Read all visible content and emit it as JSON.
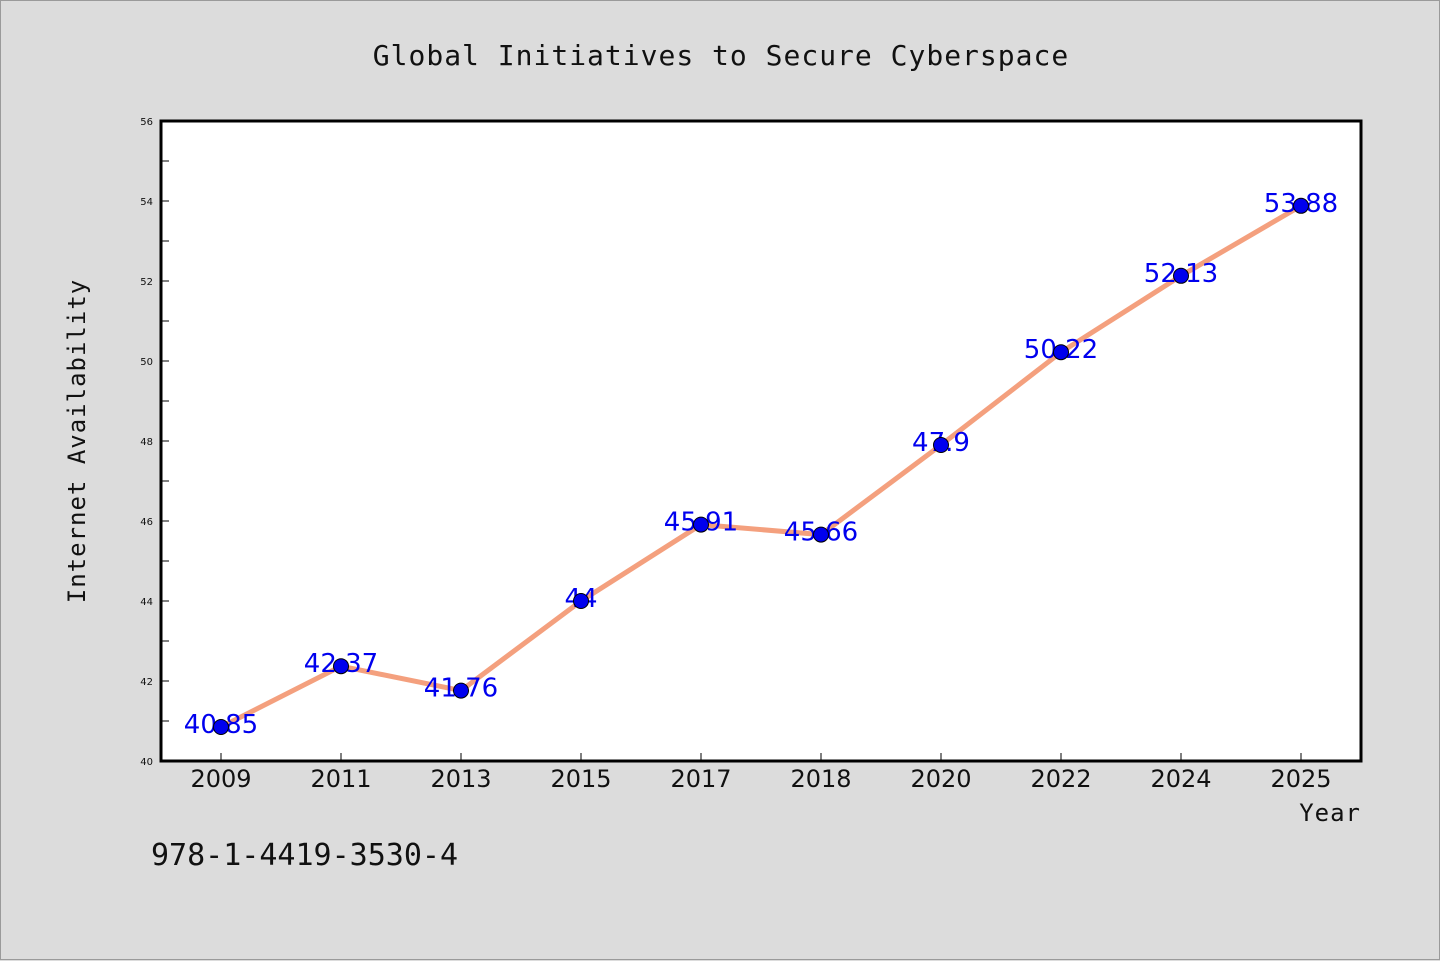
{
  "isbn": "978-1-4419-3530-4",
  "colors": {
    "background": "#dcdcdc",
    "plot_background": "#ffffff",
    "line": "#f4a07e",
    "marker": "#0000ee",
    "label": "#0000ee"
  },
  "chart_data": {
    "type": "line",
    "title": "Global Initiatives to Secure Cyberspace",
    "xlabel": "Year",
    "ylabel": "Internet Availability",
    "categories": [
      "2009",
      "2011",
      "2013",
      "2015",
      "2017",
      "2018",
      "2020",
      "2022",
      "2024",
      "2025"
    ],
    "series": [
      {
        "values": [
          40.85,
          42.37,
          41.76,
          44,
          45.91,
          45.66,
          47.9,
          50.22,
          52.13,
          53.88
        ],
        "labels": [
          "40.85",
          "42.37",
          "41.76",
          "44",
          "45.91",
          "45.66",
          "47.9",
          "50.22",
          "52.13",
          "53.88"
        ]
      }
    ],
    "ylim": [
      40,
      56
    ],
    "yticks": [
      "40",
      "42",
      "44",
      "46",
      "48",
      "50",
      "52",
      "54",
      "56"
    ],
    "grid": false,
    "legend": "none"
  }
}
